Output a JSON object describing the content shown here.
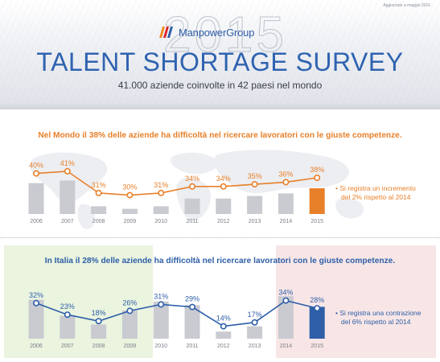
{
  "header": {
    "updated": "Aggiornato a maggio 2015",
    "watermark_year": "2015",
    "logo_text": "ManpowerGroup",
    "title": "TALENT SHORTAGE SURVEY",
    "subtitle": "41.000 aziende coinvolte in 42 paesi nel mondo"
  },
  "world": {
    "heading_lead": "Nel Mondo",
    "heading_rest": " il 38% delle aziende ha difficoltà nel ricercare lavoratori con le giuste competenze.",
    "note_bullet": "•",
    "note_line1": "Si registra un incremento",
    "note_line2": "del 2% rispetto al 2014"
  },
  "italy": {
    "heading": "In Italia il 28% delle aziende ha difficoltà nel ricercare lavoratori con le giuste competenze.",
    "note_bullet": "•",
    "note_line1": "Si registra una contrazione",
    "note_line2": "del 6% rispetto al 2014"
  },
  "colors": {
    "world_accent": "#e8802a",
    "italy_accent": "#2e5fa8",
    "bar_gray": "#c9cbd1",
    "year_gray": "#7a7e86",
    "green_bg": "#eaf4df",
    "red_bg": "#f8e6e6"
  },
  "chart_data": [
    {
      "type": "line",
      "categories": [
        "2006",
        "2007",
        "2008",
        "2009",
        "2010",
        "2011",
        "2012",
        "2013",
        "2014",
        "2015"
      ],
      "values": [
        40,
        41,
        31,
        30,
        31,
        34,
        34,
        35,
        36,
        38
      ],
      "labels": [
        "40%",
        "41%",
        "31%",
        "30%",
        "31%",
        "34%",
        "34%",
        "35%",
        "36%",
        "38%"
      ],
      "highlight_last": true
    },
    {
      "type": "line",
      "categories": [
        "2006",
        "2007",
        "2008",
        "2009",
        "2010",
        "2011",
        "2012",
        "2013",
        "2014",
        "2015"
      ],
      "values": [
        32,
        23,
        18,
        26,
        31,
        29,
        14,
        17,
        34,
        28
      ],
      "labels": [
        "32%",
        "23%",
        "18%",
        "26%",
        "31%",
        "29%",
        "14%",
        "17%",
        "34%",
        "28%"
      ],
      "highlight_last": true
    }
  ]
}
